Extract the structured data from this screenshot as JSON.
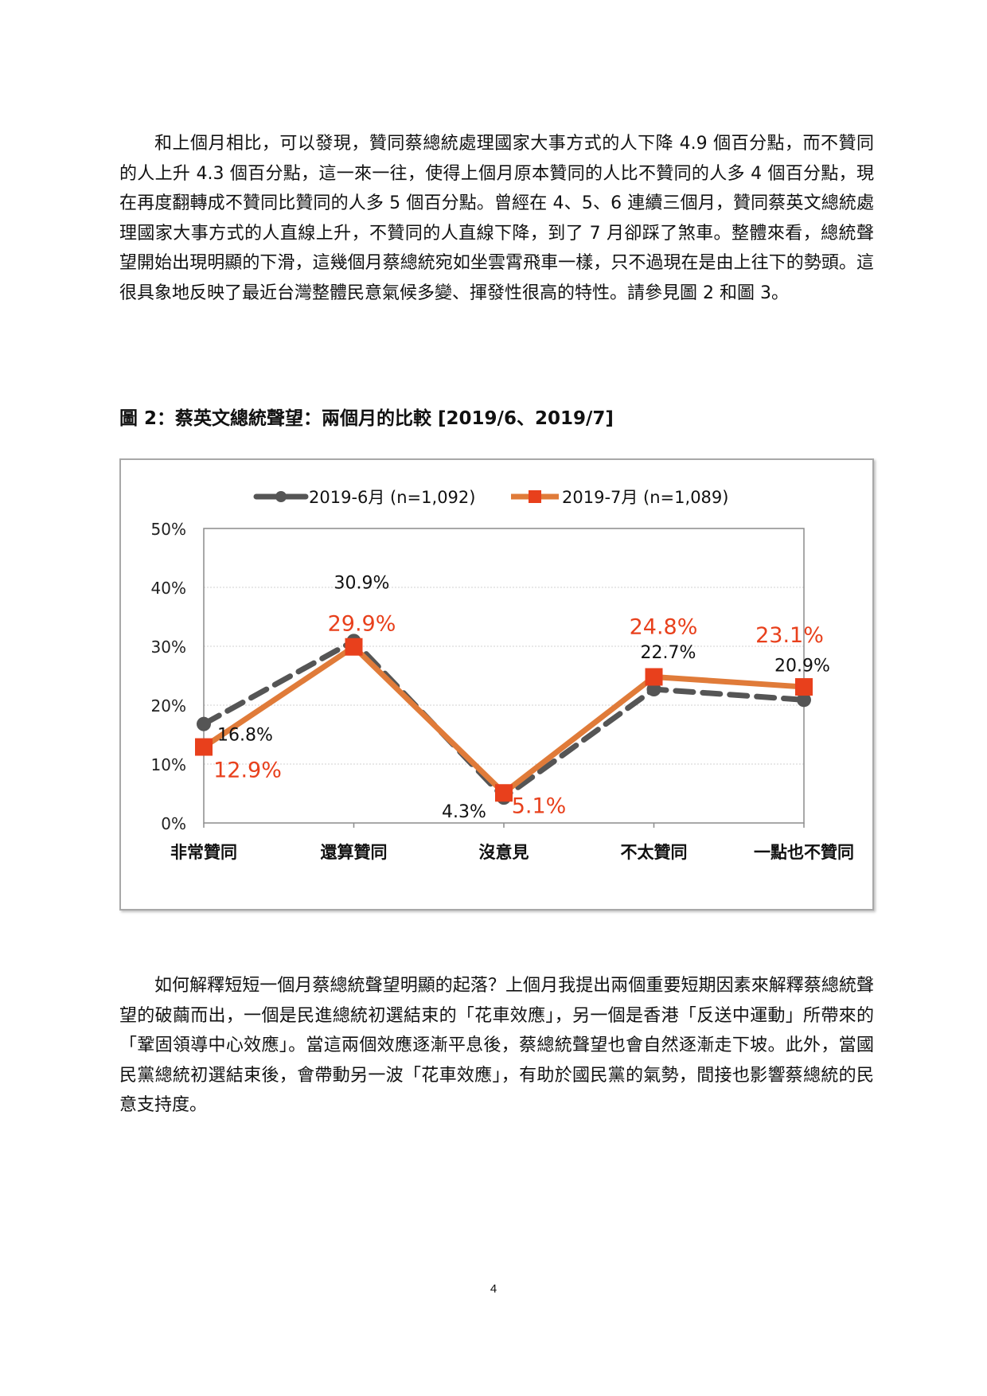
{
  "paragraph1": "和上個月相比，可以發現，贊同蔡總統處理國家大事方式的人下降 4.9 個百分點，而不贊同的人上升 4.3 個百分點，這一來一往，使得上個月原本贊同的人比不贊同的人多 4 個百分點，現在再度翻轉成不贊同比贊同的人多 5 個百分點。曾經在 4、5、6 連續三個月，贊同蔡英文總統處理國家大事方式的人直線上升，不贊同的人直線下降，到了 7 月卻踩了煞車。整體來看，總統聲望開始出現明顯的下滑，這幾個月蔡總統宛如坐雲霄飛車一樣，只不過現在是由上往下的勢頭。這很具象地反映了最近台灣整體民意氣候多變、揮發性很高的特性。請參見圖 2 和圖 3。",
  "figure_title": "圖 2：蔡英文總統聲望：兩個月的比較  [2019/6、2019/7]",
  "paragraph2": "如何解釋短短一個月蔡總統聲望明顯的起落？上個月我提出兩個重要短期因素來解釋蔡總統聲望的破繭而出，一個是民進總統初選結束的「花車效應」，另一個是香港「反送中運動」所帶來的「鞏固領導中心效應」。當這兩個效應逐漸平息後，蔡總統聲望也會自然逐漸走下坡。此外，當國民黨總統初選結束後，會帶動另一波「花車效應」，有助於國民黨的氣勢，間接也影響蔡總統的民意支持度。",
  "page_number": "4",
  "chart_data": {
    "type": "line",
    "categories": [
      "非常贊同",
      "還算贊同",
      "沒意見",
      "不太贊同",
      "一點也不贊同"
    ],
    "ylim": [
      0,
      50
    ],
    "yticks": [
      0,
      10,
      20,
      30,
      40,
      50
    ],
    "ytick_labels": [
      "0%",
      "10%",
      "20%",
      "30%",
      "40%",
      "50%"
    ],
    "grid": true,
    "legend_position": "top",
    "series": [
      {
        "name": "2019-6月 (n=1,092)",
        "values": [
          16.8,
          30.9,
          4.3,
          22.7,
          20.9
        ],
        "labels": [
          "16.8%",
          "30.9%",
          "4.3%",
          "22.7%",
          "20.9%"
        ],
        "color": "#555555",
        "label_color": "#111111",
        "line_style": "dashed",
        "marker": "circle"
      },
      {
        "name": "2019-7月 (n=1,089)",
        "values": [
          12.9,
          29.9,
          5.1,
          24.8,
          23.1
        ],
        "labels": [
          "12.9%",
          "29.9%",
          "5.1%",
          "24.8%",
          "23.1%"
        ],
        "color": "#E07B39",
        "label_color": "#E8401C",
        "marker_color": "#E8401C",
        "line_style": "solid",
        "marker": "square"
      }
    ]
  }
}
